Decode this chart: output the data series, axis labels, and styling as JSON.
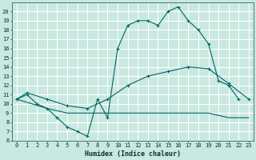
{
  "xlabel": "Humidex (Indice chaleur)",
  "bg_color": "#c8e8e0",
  "grid_color": "#ffffff",
  "line_color": "#006666",
  "xlim": [
    -0.5,
    23.5
  ],
  "ylim": [
    6,
    21
  ],
  "xticks": [
    0,
    1,
    2,
    3,
    4,
    5,
    6,
    7,
    8,
    9,
    10,
    11,
    12,
    13,
    14,
    15,
    16,
    17,
    18,
    19,
    20,
    21,
    22,
    23
  ],
  "yticks": [
    6,
    7,
    8,
    9,
    10,
    11,
    12,
    13,
    14,
    15,
    16,
    17,
    18,
    19,
    20
  ],
  "line1_x": [
    0,
    1,
    2,
    3,
    4,
    5,
    6,
    7,
    8,
    9,
    10,
    11,
    12,
    13,
    14,
    15,
    16,
    17,
    18,
    19,
    20,
    21,
    22
  ],
  "line1_y": [
    10.5,
    11.0,
    10.0,
    9.5,
    8.5,
    7.5,
    7.0,
    6.5,
    10.5,
    8.5,
    16.0,
    18.5,
    19.0,
    19.0,
    18.5,
    20.0,
    20.5,
    19.0,
    18.0,
    16.5,
    12.5,
    12.0,
    10.5
  ],
  "line2_x": [
    0,
    1,
    3,
    5,
    7,
    9,
    11,
    13,
    15,
    17,
    19,
    21,
    23
  ],
  "line2_y": [
    10.5,
    11.2,
    10.5,
    9.8,
    9.5,
    10.5,
    12.0,
    13.0,
    13.5,
    14.0,
    13.8,
    12.2,
    10.5
  ],
  "line3_x": [
    0,
    3,
    5,
    9,
    13,
    17,
    19,
    21,
    23
  ],
  "line3_y": [
    10.5,
    9.5,
    9.0,
    9.0,
    9.0,
    9.0,
    9.0,
    8.5,
    8.5
  ]
}
